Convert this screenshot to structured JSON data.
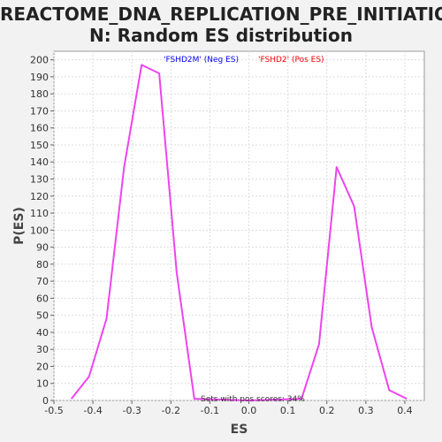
{
  "chart_data": {
    "type": "line",
    "title_line1": "REACTOME_DNA_REPLICATION_PRE_INITIATIO",
    "title_line2": "N: Random ES distribution",
    "xlabel": "ES",
    "ylabel": "P(ES)",
    "xlim": [
      -0.5,
      0.45
    ],
    "ylim": [
      0,
      205
    ],
    "xticks": [
      -0.5,
      -0.4,
      -0.3,
      -0.2,
      -0.1,
      0.0,
      0.1,
      0.2,
      0.3,
      0.4
    ],
    "xtick_labels": [
      "-0.5",
      "-0.4",
      "-0.3",
      "-0.2",
      "-0.1",
      "0.0",
      "0.1",
      "0.2",
      "0.3",
      "0.4"
    ],
    "yticks": [
      0,
      10,
      20,
      30,
      40,
      50,
      60,
      70,
      80,
      90,
      100,
      110,
      120,
      130,
      140,
      150,
      160,
      170,
      180,
      190,
      200
    ],
    "grid": true,
    "series": [
      {
        "color": "#ee44ee",
        "x": [
          -0.455,
          -0.41,
          -0.365,
          -0.32,
          -0.275,
          -0.23,
          -0.185,
          -0.14,
          0.0,
          0.135,
          0.18,
          0.225,
          0.27,
          0.315,
          0.36,
          0.405
        ],
        "y": [
          1,
          14,
          48,
          137,
          197,
          192,
          75,
          1,
          0,
          1,
          33,
          137,
          114,
          43,
          6,
          1
        ]
      }
    ],
    "legend": [
      {
        "text": "'FSHD2M' (Neg ES)",
        "color": "#0000ff"
      },
      {
        "text": "'FSHD2' (Pos ES)",
        "color": "#ff0000"
      }
    ],
    "annotation": "Sets with pos scores: 34%"
  }
}
